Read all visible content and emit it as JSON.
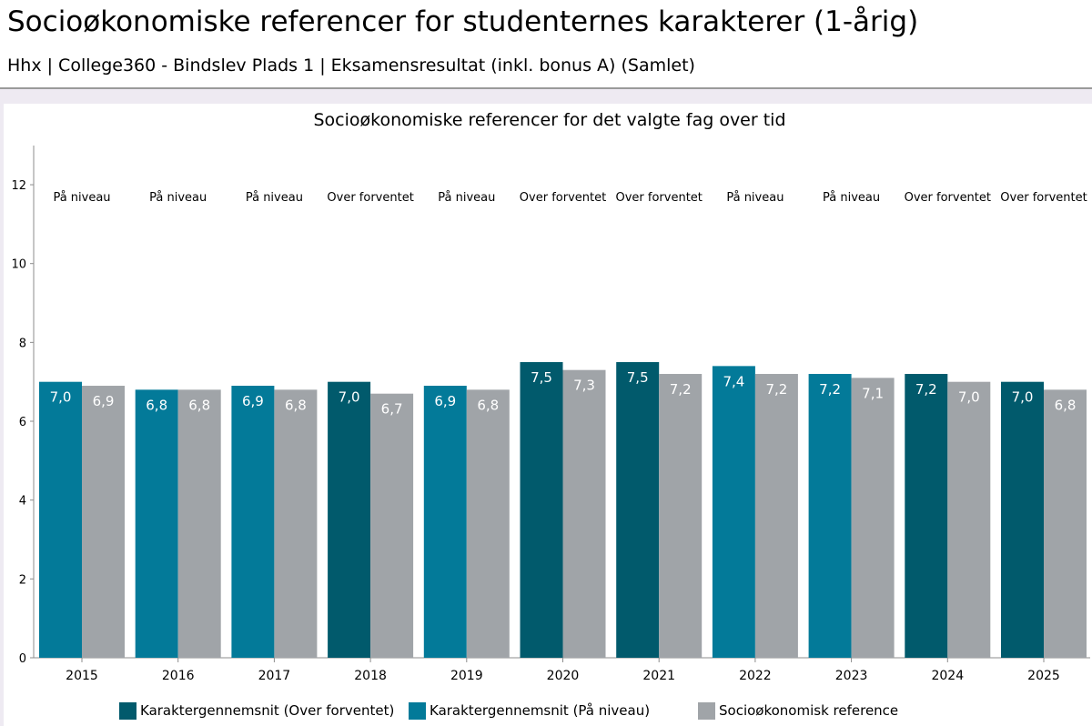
{
  "header": {
    "title": "Socioøkonomiske referencer for studenternes karakterer (1-årig)",
    "subtitle": "Hhx | College360 - Bindslev Plads 1 | Eksamensresultat (inkl. bonus A) (Samlet)"
  },
  "colors": {
    "over_forventet": "#015a6c",
    "paa_niveau": "#037a99",
    "reference": "#a0a4a8",
    "axis": "#8c8c8c"
  },
  "chart_data": {
    "type": "bar",
    "title": "Socioøkonomiske referencer for det valgte fag over tid",
    "xlabel": "",
    "ylabel": "",
    "ylim": [
      0,
      13
    ],
    "yticks": [
      0,
      2,
      4,
      6,
      8,
      10,
      12
    ],
    "grid": false,
    "legend_position": "bottom",
    "categories": [
      "2015",
      "2016",
      "2017",
      "2018",
      "2019",
      "2020",
      "2021",
      "2022",
      "2023",
      "2024",
      "2025"
    ],
    "status": [
      "På niveau",
      "På niveau",
      "På niveau",
      "Over forventet",
      "På niveau",
      "Over forventet",
      "Over forventet",
      "På niveau",
      "På niveau",
      "Over forventet",
      "Over forventet"
    ],
    "series": [
      {
        "name": "Karaktergennemsnit",
        "values": [
          7.0,
          6.8,
          6.9,
          7.0,
          6.9,
          7.5,
          7.5,
          7.4,
          7.2,
          7.2,
          7.0
        ],
        "labels": [
          "7,0",
          "6,8",
          "6,9",
          "7,0",
          "6,9",
          "7,5",
          "7,5",
          "7,4",
          "7,2",
          "7,2",
          "7,0"
        ]
      },
      {
        "name": "Socioøkonomisk reference",
        "values": [
          6.9,
          6.8,
          6.8,
          6.7,
          6.8,
          7.3,
          7.2,
          7.2,
          7.1,
          7.0,
          6.8
        ],
        "labels": [
          "6,9",
          "6,8",
          "6,8",
          "6,7",
          "6,8",
          "7,3",
          "7,2",
          "7,2",
          "7,1",
          "7,0",
          "6,8"
        ]
      }
    ],
    "legend": [
      {
        "label": "Karaktergennemsnit (Over forventet)",
        "color": "#015a6c"
      },
      {
        "label": "Karaktergennemsnit (På niveau)",
        "color": "#037a99"
      },
      {
        "label": "Socioøkonomisk reference",
        "color": "#a0a4a8"
      }
    ]
  }
}
